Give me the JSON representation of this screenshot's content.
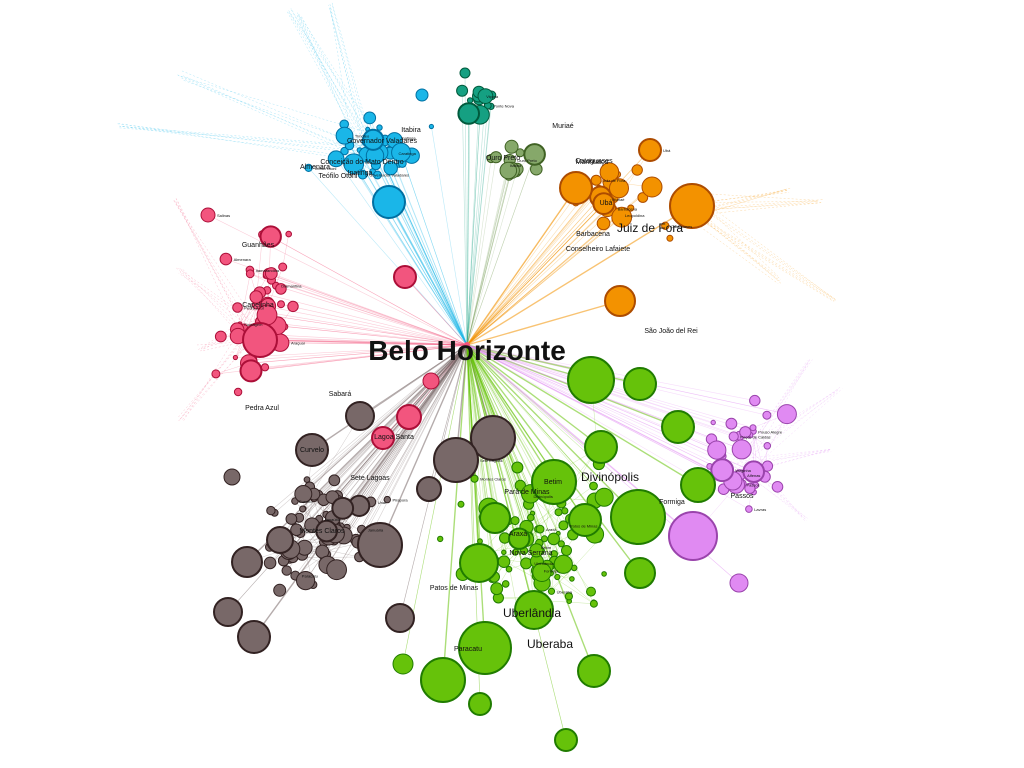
{
  "colors": {
    "pink": "#f2557e",
    "cyan": "#1ab6e8",
    "orange": "#f39200",
    "green": "#66c20a",
    "brown": "#786868",
    "violet": "#e08af2",
    "teal": "#15a082",
    "sage": "#86a86a"
  },
  "graph": {
    "hub": {
      "label": "Belo Horizonte",
      "color": "pink",
      "from": "ne"
    },
    "large_labels": [
      "Juiz de Fora",
      "Uberlândia",
      "Uberaba",
      "Divinópolis",
      "Betim",
      "Sete Lagoas",
      "Montes Claros",
      "Ipatinga",
      "Governador Valadares",
      "Teófilo Otoni",
      "Muriaé",
      "São João del Rei",
      "Passos",
      "Patos de Minas",
      "Curvelo",
      "Araxá",
      "Nova Serrana",
      "Pará de Minas",
      "Formiga",
      "Ubá",
      "Barbacena",
      "Conselheiro Lafaiete",
      "Lagoa Santa",
      "Sabará",
      "Conceição do Mato Dentro",
      "Almenara",
      "Capelinha",
      "Guanhães",
      "Pedra Azul",
      "Manhuaçu",
      "Ouro Preto",
      "Itabira",
      "Cataguases",
      "Paracatu"
    ],
    "nodes": [
      {
        "label": "Contagem",
        "color": "pink"
      },
      {
        "label": "Diamantina",
        "color": "pink"
      },
      {
        "label": "Itamarandiba",
        "color": "pink"
      },
      {
        "label": "Pedra Azul",
        "color": "pink"
      },
      {
        "label": "Almenara",
        "color": "pink"
      },
      {
        "label": "Salinas",
        "color": "pink"
      },
      {
        "label": "Araçuaí",
        "color": "pink"
      },
      {
        "label": "Ipatinga",
        "color": "cyan"
      },
      {
        "label": "Teófilo Otoni",
        "color": "cyan"
      },
      {
        "label": "Governador Valadares",
        "color": "cyan"
      },
      {
        "label": "Caratinga",
        "color": "cyan"
      },
      {
        "label": "Timóteo",
        "color": "cyan"
      },
      {
        "label": "Juiz de Fora",
        "color": "orange"
      },
      {
        "label": "Barbacena",
        "color": "orange"
      },
      {
        "label": "Ubá",
        "color": "orange"
      },
      {
        "label": "Muriaé",
        "color": "orange"
      },
      {
        "label": "Cataguases",
        "color": "orange"
      },
      {
        "label": "Leopoldina",
        "color": "orange"
      },
      {
        "label": "Betim",
        "color": "green"
      },
      {
        "label": "Uberlândia",
        "color": "green"
      },
      {
        "label": "Uberaba",
        "color": "green"
      },
      {
        "label": "Divinópolis",
        "color": "green"
      },
      {
        "label": "Montes Claros",
        "color": "green"
      },
      {
        "label": "Araxá",
        "color": "green"
      },
      {
        "label": "Patos de Minas",
        "color": "green"
      },
      {
        "label": "Formiga",
        "color": "green"
      },
      {
        "label": "Sete Lagoas",
        "color": "brown"
      },
      {
        "label": "Curvelo",
        "color": "brown"
      },
      {
        "label": "Pirapora",
        "color": "brown"
      },
      {
        "label": "Janaúba",
        "color": "brown"
      },
      {
        "label": "Januária",
        "color": "brown"
      },
      {
        "label": "Paracatu",
        "color": "brown"
      },
      {
        "label": "Unaí",
        "color": "brown"
      },
      {
        "label": "Passos",
        "color": "violet"
      },
      {
        "label": "Varginha",
        "color": "violet"
      },
      {
        "label": "Pouso Alegre",
        "color": "violet"
      },
      {
        "label": "Lavras",
        "color": "violet"
      },
      {
        "label": "Poços de Caldas",
        "color": "violet"
      },
      {
        "label": "Alfenas",
        "color": "violet"
      },
      {
        "label": "Ponte Nova",
        "color": "teal"
      },
      {
        "label": "Viçosa",
        "color": "teal"
      },
      {
        "label": "Ouro Preto",
        "color": "sage"
      },
      {
        "label": "Itabira",
        "color": "sage"
      }
    ]
  }
}
